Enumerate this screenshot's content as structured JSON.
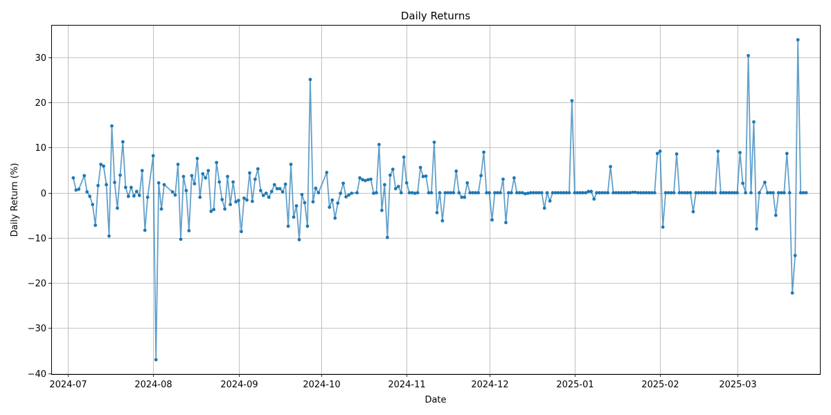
{
  "chart_data": {
    "type": "line",
    "title": "Daily Returns",
    "xlabel": "Date",
    "ylabel": "Daily Return (%)",
    "x_ticks": [
      "2024-07",
      "2024-08",
      "2024-09",
      "2024-10",
      "2024-11",
      "2024-12",
      "2025-01",
      "2025-02",
      "2025-03"
    ],
    "x_range": [
      "2024-06-25",
      "2025-03-31"
    ],
    "y_ticks": [
      -40,
      -30,
      -20,
      -10,
      0,
      10,
      20,
      30
    ],
    "ylim": [
      -40.2,
      37.2
    ],
    "grid": true,
    "color": "#1f77b4",
    "series": [
      {
        "points": [
          [
            "2024-07-03",
            3.3
          ],
          [
            "2024-07-04",
            0.6
          ],
          [
            "2024-07-05",
            0.8
          ],
          [
            "2024-07-07",
            3.8
          ],
          [
            "2024-07-08",
            0.2
          ],
          [
            "2024-07-09",
            -0.8
          ],
          [
            "2024-07-10",
            -2.6
          ],
          [
            "2024-07-11",
            -7.2
          ],
          [
            "2024-07-12",
            1.6
          ],
          [
            "2024-07-13",
            6.3
          ],
          [
            "2024-07-14",
            5.9
          ],
          [
            "2024-07-15",
            1.8
          ],
          [
            "2024-07-16",
            -9.6
          ],
          [
            "2024-07-17",
            14.8
          ],
          [
            "2024-07-18",
            2.3
          ],
          [
            "2024-07-19",
            -3.4
          ],
          [
            "2024-07-20",
            3.9
          ],
          [
            "2024-07-21",
            11.3
          ],
          [
            "2024-07-22",
            1.2
          ],
          [
            "2024-07-23",
            -0.8
          ],
          [
            "2024-07-24",
            1.2
          ],
          [
            "2024-07-25",
            -0.7
          ],
          [
            "2024-07-26",
            0.3
          ],
          [
            "2024-07-27",
            -0.6
          ],
          [
            "2024-07-28",
            4.9
          ],
          [
            "2024-07-29",
            -8.3
          ],
          [
            "2024-07-30",
            -1.0
          ],
          [
            "2024-08-01",
            8.2
          ],
          [
            "2024-08-02",
            -37.0
          ],
          [
            "2024-08-03",
            2.2
          ],
          [
            "2024-08-04",
            -3.6
          ],
          [
            "2024-08-05",
            1.8
          ],
          [
            "2024-08-08",
            0.2
          ],
          [
            "2024-08-09",
            -0.5
          ],
          [
            "2024-08-10",
            6.3
          ],
          [
            "2024-08-11",
            -10.3
          ],
          [
            "2024-08-12",
            3.6
          ],
          [
            "2024-08-13",
            0.5
          ],
          [
            "2024-08-14",
            -8.4
          ],
          [
            "2024-08-15",
            3.8
          ],
          [
            "2024-08-16",
            2.0
          ],
          [
            "2024-08-17",
            7.6
          ],
          [
            "2024-08-18",
            -1.0
          ],
          [
            "2024-08-19",
            4.2
          ],
          [
            "2024-08-20",
            3.3
          ],
          [
            "2024-08-21",
            4.9
          ],
          [
            "2024-08-22",
            -4.1
          ],
          [
            "2024-08-23",
            -3.7
          ],
          [
            "2024-08-24",
            6.7
          ],
          [
            "2024-08-25",
            2.4
          ],
          [
            "2024-08-26",
            -1.5
          ],
          [
            "2024-08-27",
            -3.6
          ],
          [
            "2024-08-28",
            3.6
          ],
          [
            "2024-08-29",
            -2.6
          ],
          [
            "2024-08-30",
            2.4
          ],
          [
            "2024-08-31",
            -2.0
          ],
          [
            "2024-09-01",
            -1.7
          ],
          [
            "2024-09-02",
            -8.6
          ],
          [
            "2024-09-03",
            -1.2
          ],
          [
            "2024-09-04",
            -1.6
          ],
          [
            "2024-09-05",
            4.4
          ],
          [
            "2024-09-06",
            -1.9
          ],
          [
            "2024-09-07",
            3.0
          ],
          [
            "2024-09-08",
            5.3
          ],
          [
            "2024-09-09",
            0.5
          ],
          [
            "2024-09-10",
            -0.6
          ],
          [
            "2024-09-11",
            -0.1
          ],
          [
            "2024-09-12",
            -1.0
          ],
          [
            "2024-09-13",
            0.3
          ],
          [
            "2024-09-14",
            1.8
          ],
          [
            "2024-09-15",
            0.9
          ],
          [
            "2024-09-16",
            0.9
          ],
          [
            "2024-09-17",
            0.2
          ],
          [
            "2024-09-18",
            1.9
          ],
          [
            "2024-09-19",
            -7.4
          ],
          [
            "2024-09-20",
            6.3
          ],
          [
            "2024-09-21",
            -5.4
          ],
          [
            "2024-09-22",
            -2.9
          ],
          [
            "2024-09-23",
            -10.4
          ],
          [
            "2024-09-24",
            -0.4
          ],
          [
            "2024-09-25",
            -2.2
          ],
          [
            "2024-09-26",
            -7.4
          ],
          [
            "2024-09-27",
            25.1
          ],
          [
            "2024-09-28",
            -2.0
          ],
          [
            "2024-09-29",
            1.0
          ],
          [
            "2024-09-30",
            0.0
          ],
          [
            "2024-10-03",
            4.5
          ],
          [
            "2024-10-04",
            -3.2
          ],
          [
            "2024-10-05",
            -1.6
          ],
          [
            "2024-10-06",
            -5.6
          ],
          [
            "2024-10-07",
            -2.3
          ],
          [
            "2024-10-08",
            -0.1
          ],
          [
            "2024-10-09",
            2.1
          ],
          [
            "2024-10-10",
            -0.9
          ],
          [
            "2024-10-11",
            -0.5
          ],
          [
            "2024-10-12",
            -0.1
          ],
          [
            "2024-10-14",
            0.0
          ],
          [
            "2024-10-15",
            3.3
          ],
          [
            "2024-10-16",
            2.9
          ],
          [
            "2024-10-17",
            2.7
          ],
          [
            "2024-10-18",
            2.9
          ],
          [
            "2024-10-19",
            3.0
          ],
          [
            "2024-10-20",
            -0.1
          ],
          [
            "2024-10-21",
            0.0
          ],
          [
            "2024-10-22",
            10.7
          ],
          [
            "2024-10-23",
            -3.9
          ],
          [
            "2024-10-24",
            1.8
          ],
          [
            "2024-10-25",
            -9.9
          ],
          [
            "2024-10-26",
            3.9
          ],
          [
            "2024-10-27",
            5.2
          ],
          [
            "2024-10-28",
            0.9
          ],
          [
            "2024-10-29",
            1.4
          ],
          [
            "2024-10-30",
            0.0
          ],
          [
            "2024-10-31",
            7.9
          ],
          [
            "2024-11-01",
            2.2
          ],
          [
            "2024-11-02",
            0.0
          ],
          [
            "2024-11-03",
            0.0
          ],
          [
            "2024-11-04",
            -0.1
          ],
          [
            "2024-11-05",
            0.0
          ],
          [
            "2024-11-06",
            5.6
          ],
          [
            "2024-11-07",
            3.6
          ],
          [
            "2024-11-08",
            3.7
          ],
          [
            "2024-11-09",
            0.0
          ],
          [
            "2024-11-10",
            0.0
          ],
          [
            "2024-11-11",
            11.2
          ],
          [
            "2024-11-12",
            -4.4
          ],
          [
            "2024-11-13",
            0.0
          ],
          [
            "2024-11-14",
            -6.2
          ],
          [
            "2024-11-15",
            0.0
          ],
          [
            "2024-11-16",
            0.0
          ],
          [
            "2024-11-17",
            0.0
          ],
          [
            "2024-11-18",
            0.0
          ],
          [
            "2024-11-19",
            4.8
          ],
          [
            "2024-11-20",
            0.0
          ],
          [
            "2024-11-21",
            -1.0
          ],
          [
            "2024-11-22",
            -1.0
          ],
          [
            "2024-11-23",
            2.2
          ],
          [
            "2024-11-24",
            0.0
          ],
          [
            "2024-11-25",
            0.0
          ],
          [
            "2024-11-26",
            0.0
          ],
          [
            "2024-11-27",
            0.0
          ],
          [
            "2024-11-28",
            3.8
          ],
          [
            "2024-11-29",
            9.0
          ],
          [
            "2024-11-30",
            0.0
          ],
          [
            "2024-12-01",
            0.0
          ],
          [
            "2024-12-02",
            -6.0
          ],
          [
            "2024-12-03",
            0.0
          ],
          [
            "2024-12-04",
            0.0
          ],
          [
            "2024-12-05",
            0.0
          ],
          [
            "2024-12-06",
            3.0
          ],
          [
            "2024-12-07",
            -6.6
          ],
          [
            "2024-12-08",
            0.0
          ],
          [
            "2024-12-09",
            0.0
          ],
          [
            "2024-12-10",
            3.3
          ],
          [
            "2024-12-11",
            0.0
          ],
          [
            "2024-12-12",
            0.0
          ],
          [
            "2024-12-13",
            0.0
          ],
          [
            "2024-12-14",
            -0.2
          ],
          [
            "2024-12-15",
            -0.1
          ],
          [
            "2024-12-16",
            0.0
          ],
          [
            "2024-12-17",
            0.0
          ],
          [
            "2024-12-18",
            0.0
          ],
          [
            "2024-12-19",
            0.0
          ],
          [
            "2024-12-20",
            0.0
          ],
          [
            "2024-12-21",
            -3.4
          ],
          [
            "2024-12-22",
            0.0
          ],
          [
            "2024-12-23",
            -1.8
          ],
          [
            "2024-12-24",
            0.0
          ],
          [
            "2024-12-25",
            0.0
          ],
          [
            "2024-12-26",
            0.0
          ],
          [
            "2024-12-27",
            0.0
          ],
          [
            "2024-12-28",
            0.0
          ],
          [
            "2024-12-29",
            0.0
          ],
          [
            "2024-12-30",
            0.0
          ],
          [
            "2024-12-31",
            20.4
          ],
          [
            "2025-01-01",
            0.0
          ],
          [
            "2025-01-02",
            0.0
          ],
          [
            "2025-01-03",
            0.0
          ],
          [
            "2025-01-04",
            0.0
          ],
          [
            "2025-01-05",
            0.0
          ],
          [
            "2025-01-06",
            0.3
          ],
          [
            "2025-01-07",
            0.3
          ],
          [
            "2025-01-08",
            -1.4
          ],
          [
            "2025-01-09",
            0.0
          ],
          [
            "2025-01-10",
            0.0
          ],
          [
            "2025-01-11",
            0.0
          ],
          [
            "2025-01-12",
            0.0
          ],
          [
            "2025-01-13",
            0.0
          ],
          [
            "2025-01-14",
            5.8
          ],
          [
            "2025-01-15",
            0.0
          ],
          [
            "2025-01-16",
            0.0
          ],
          [
            "2025-01-17",
            0.0
          ],
          [
            "2025-01-18",
            0.0
          ],
          [
            "2025-01-19",
            0.0
          ],
          [
            "2025-01-20",
            0.0
          ],
          [
            "2025-01-21",
            0.0
          ],
          [
            "2025-01-22",
            0.1
          ],
          [
            "2025-01-23",
            0.1
          ],
          [
            "2025-01-24",
            0.0
          ],
          [
            "2025-01-25",
            0.0
          ],
          [
            "2025-01-26",
            0.0
          ],
          [
            "2025-01-27",
            0.0
          ],
          [
            "2025-01-28",
            0.0
          ],
          [
            "2025-01-29",
            0.0
          ],
          [
            "2025-01-30",
            0.0
          ],
          [
            "2025-01-31",
            8.7
          ],
          [
            "2025-02-01",
            9.2
          ],
          [
            "2025-02-02",
            -7.6
          ],
          [
            "2025-02-03",
            0.0
          ],
          [
            "2025-02-04",
            0.0
          ],
          [
            "2025-02-05",
            0.0
          ],
          [
            "2025-02-06",
            0.0
          ],
          [
            "2025-02-07",
            8.6
          ],
          [
            "2025-02-08",
            0.0
          ],
          [
            "2025-02-09",
            0.0
          ],
          [
            "2025-02-10",
            0.0
          ],
          [
            "2025-02-11",
            0.0
          ],
          [
            "2025-02-12",
            0.0
          ],
          [
            "2025-02-13",
            -4.2
          ],
          [
            "2025-02-14",
            0.0
          ],
          [
            "2025-02-15",
            0.0
          ],
          [
            "2025-02-16",
            0.0
          ],
          [
            "2025-02-17",
            0.0
          ],
          [
            "2025-02-18",
            0.0
          ],
          [
            "2025-02-19",
            0.0
          ],
          [
            "2025-02-20",
            0.0
          ],
          [
            "2025-02-21",
            0.0
          ],
          [
            "2025-02-22",
            9.2
          ],
          [
            "2025-02-23",
            0.0
          ],
          [
            "2025-02-24",
            0.0
          ],
          [
            "2025-02-25",
            0.0
          ],
          [
            "2025-02-26",
            0.0
          ],
          [
            "2025-02-27",
            0.0
          ],
          [
            "2025-02-28",
            0.0
          ],
          [
            "2025-03-01",
            0.0
          ],
          [
            "2025-03-02",
            8.9
          ],
          [
            "2025-03-03",
            2.1
          ],
          [
            "2025-03-04",
            0.0
          ],
          [
            "2025-03-05",
            30.4
          ],
          [
            "2025-03-06",
            0.0
          ],
          [
            "2025-03-07",
            15.7
          ],
          [
            "2025-03-08",
            -8.0
          ],
          [
            "2025-03-09",
            0.0
          ],
          [
            "2025-03-11",
            2.3
          ],
          [
            "2025-03-12",
            0.0
          ],
          [
            "2025-03-13",
            0.0
          ],
          [
            "2025-03-14",
            0.0
          ],
          [
            "2025-03-15",
            -5.0
          ],
          [
            "2025-03-16",
            0.0
          ],
          [
            "2025-03-17",
            0.0
          ],
          [
            "2025-03-18",
            0.0
          ],
          [
            "2025-03-19",
            8.7
          ],
          [
            "2025-03-20",
            0.0
          ],
          [
            "2025-03-21",
            -22.2
          ],
          [
            "2025-03-22",
            -13.9
          ],
          [
            "2025-03-23",
            33.9
          ],
          [
            "2025-03-24",
            0.0
          ],
          [
            "2025-03-25",
            0.0
          ],
          [
            "2025-03-26",
            0.0
          ]
        ]
      }
    ]
  }
}
